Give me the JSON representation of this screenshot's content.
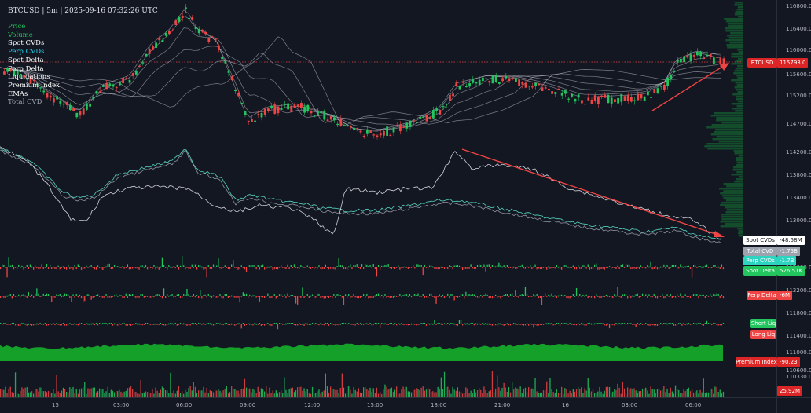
{
  "header": {
    "title": "BTCUSD | 5m | 2025-09-16 07:32:26 UTC"
  },
  "legend": [
    {
      "label": "Price",
      "color": "#22c55e"
    },
    {
      "label": "Volume",
      "color": "#22c55e"
    },
    {
      "label": "Spot CVDs",
      "color": "#ffffff"
    },
    {
      "label": "Perp CVDs",
      "color": "#22d3ee"
    },
    {
      "label": "Spot Delta",
      "color": "#ffffff"
    },
    {
      "label": "Perp Delta",
      "color": "#ffffff"
    },
    {
      "label": "Liquidations",
      "color": "#ffffff"
    },
    {
      "label": "Premium Index",
      "color": "#ffffff"
    },
    {
      "label": "EMAs",
      "color": "#ffffff"
    },
    {
      "label": "Total CVD",
      "color": "#9ca3af"
    }
  ],
  "price_axis": [
    "116800.0",
    "116400.0",
    "116000.0",
    "115600.0",
    "115200.0",
    "114700.0",
    "114200.0",
    "113800.0",
    "113400.0",
    "113000.0",
    "112600.0",
    "112200.0",
    "111800.0",
    "111400.0",
    "111000.0",
    "110600.0",
    "110330.0"
  ],
  "time_axis": [
    "15",
    "03:00",
    "06:00",
    "09:00",
    "12:00",
    "15:00",
    "18:00",
    "21:00",
    "16",
    "03:00",
    "06:00"
  ],
  "tags": {
    "btcusd": {
      "name": "BTCUSD",
      "value": "115793.0"
    },
    "spot_cvds": {
      "name": "Spot CVDs",
      "value": "-48.58M"
    },
    "total_cvd": {
      "name": "Total CVD",
      "value": "-1.75B"
    },
    "perp_cvds": {
      "name": "Perp CVDs",
      "value": "-1.7B"
    },
    "spot_delta": {
      "name": "Spot Delta",
      "value": "526.51K"
    },
    "perp_delta": {
      "name": "Perp Delta",
      "value": "-6M"
    },
    "short_liq": {
      "name": "Short Liq"
    },
    "long_liq": {
      "name": "Long Liq"
    },
    "premium_index": {
      "name": "Premium Index",
      "value": "-90.23"
    },
    "volume": {
      "value": "25.92M"
    }
  },
  "colors": {
    "background": "#131722",
    "up": "#22c55e",
    "down": "#ef4444",
    "trend": "#ef4444",
    "perp": "#5eead4",
    "ema": "#d1d4dc"
  }
}
